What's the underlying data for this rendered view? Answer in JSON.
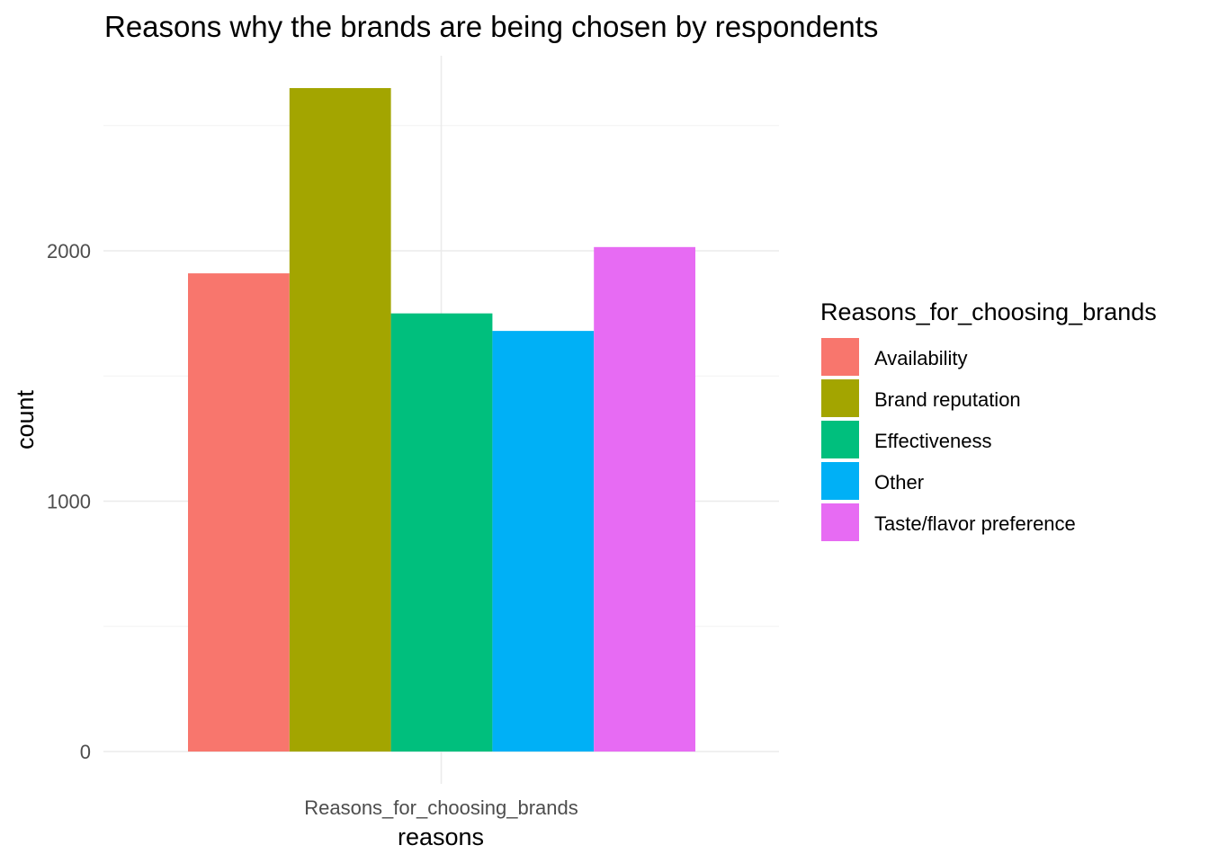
{
  "chart_data": {
    "type": "bar",
    "title": "Reasons why the brands are being chosen by respondents",
    "xlabel": "reasons",
    "ylabel": "count",
    "categories": [
      "Reasons_for_choosing_brands"
    ],
    "ylim": [
      0,
      2650
    ],
    "yticks": [
      0,
      1000,
      2000
    ],
    "grid": true,
    "legend": {
      "title": "Reasons_for_choosing_brands",
      "placement": "right"
    },
    "series": [
      {
        "name": "Availability",
        "values": [
          1910
        ],
        "color": "#F8766D"
      },
      {
        "name": "Brand reputation",
        "values": [
          2650
        ],
        "color": "#A3A500"
      },
      {
        "name": "Effectiveness",
        "values": [
          1750
        ],
        "color": "#00BF7D"
      },
      {
        "name": "Other",
        "values": [
          1680
        ],
        "color": "#00B0F6"
      },
      {
        "name": "Taste/flavor preference",
        "values": [
          2015
        ],
        "color": "#E76BF3"
      }
    ]
  }
}
